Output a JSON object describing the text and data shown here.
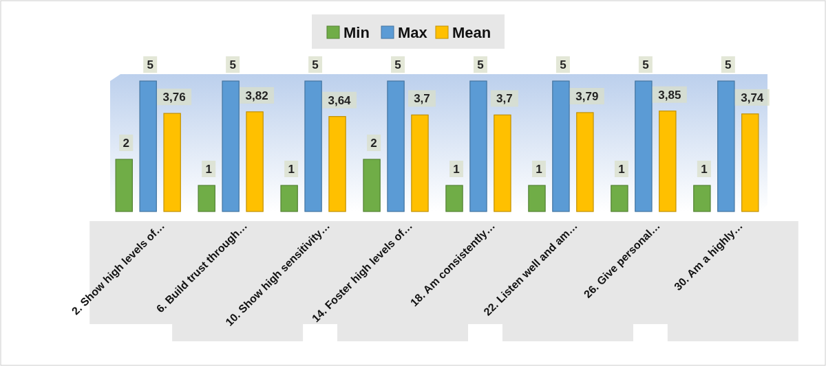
{
  "chart_data": {
    "type": "bar",
    "categories": [
      "2. Show high levels of…",
      "6. Build trust through…",
      "10. Show high sensitivity…",
      "14. Foster high levels of…",
      "18. Am consistently…",
      "22. Listen well and am…",
      "26. Give personal…",
      "30. Am a highly…"
    ],
    "series": [
      {
        "name": "Min",
        "color": "#70ad47",
        "values": [
          2,
          1,
          1,
          2,
          1,
          1,
          1,
          1
        ],
        "value_labels": [
          "2",
          "1",
          "1",
          "2",
          "1",
          "1",
          "1",
          "1"
        ]
      },
      {
        "name": "Max",
        "color": "#5b9bd5",
        "values": [
          5,
          5,
          5,
          5,
          5,
          5,
          5,
          5
        ],
        "value_labels": [
          "5",
          "5",
          "5",
          "5",
          "5",
          "5",
          "5",
          "5"
        ]
      },
      {
        "name": "Mean",
        "color": "#ffc000",
        "values": [
          3.76,
          3.82,
          3.64,
          3.7,
          3.7,
          3.79,
          3.85,
          3.74
        ],
        "value_labels": [
          "3,76",
          "3,82",
          "3,64",
          "3,7",
          "3,7",
          "3,79",
          "3,85",
          "3,74"
        ]
      }
    ],
    "legend": "top"
  }
}
